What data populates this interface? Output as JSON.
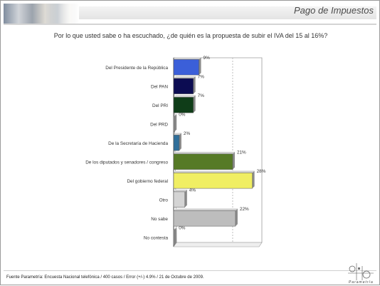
{
  "header": {
    "title": "Pago de Impuestos"
  },
  "chart_data": {
    "type": "bar",
    "orientation": "horizontal",
    "title": "Por lo que usted sabe o ha escuchado, ¿de quién es la propuesta de subir el IVA del 15 al 16%?",
    "categories": [
      "Del Presidente de la República",
      "Del PAN",
      "Del PRI",
      "Del PRD",
      "De la Secretaría de Hacienda",
      "De los diputados y senadores / congreso",
      "Del gobierno federal",
      "Otro",
      "No sabe",
      "No contesta"
    ],
    "values": [
      9,
      7,
      7,
      0,
      2,
      21,
      28,
      4,
      22,
      0
    ],
    "value_labels": [
      "9%",
      "7%",
      "7%",
      "0%",
      "2%",
      "21%",
      "28%",
      "4%",
      "22%",
      "0%"
    ],
    "colors": [
      "#3b5fd9",
      "#0c0c52",
      "#0f3d18",
      "#b5b5b5",
      "#2f6f9a",
      "#567a26",
      "#f0ee63",
      "#d4d4d4",
      "#bdbdbd",
      "#b5b5b5"
    ],
    "xlim": [
      0,
      40
    ],
    "reference_line": 21,
    "grid": false,
    "legend": "none"
  },
  "footer": {
    "source": "Fuente Parametría: Encuesta Nacional telefónica / 400 casos / Error (+/-) 4.9% / 21 de Octubre de 2009."
  },
  "logo": {
    "text": "Parametría"
  }
}
